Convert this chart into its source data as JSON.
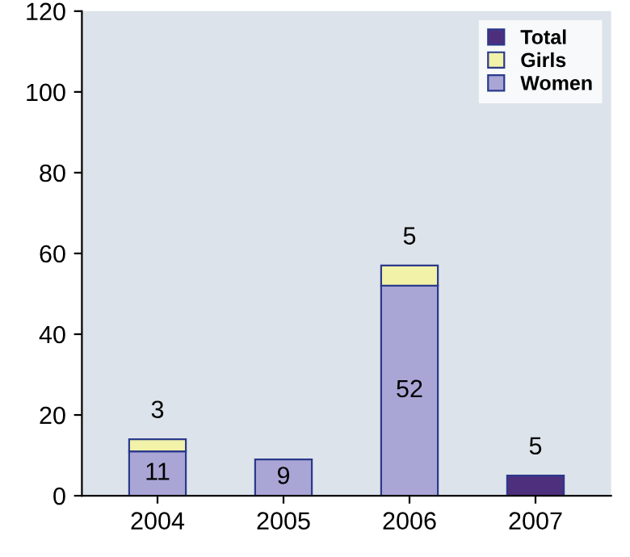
{
  "chart_data": {
    "type": "bar",
    "stacked": true,
    "categories": [
      "2004",
      "2005",
      "2006",
      "2007"
    ],
    "series": [
      {
        "name": "Women",
        "color": "#a9a6d6",
        "values": [
          11,
          9,
          52,
          null
        ]
      },
      {
        "name": "Girls",
        "color": "#f2f2a8",
        "values": [
          3,
          null,
          5,
          null
        ]
      },
      {
        "name": "Total",
        "color": "#4e2f7e",
        "values": [
          null,
          null,
          null,
          5
        ]
      }
    ],
    "ylim": [
      0,
      120
    ],
    "yticks": [
      0,
      20,
      40,
      60,
      80,
      100,
      120
    ],
    "data_labels": true,
    "legend": "top right",
    "grid": false
  }
}
